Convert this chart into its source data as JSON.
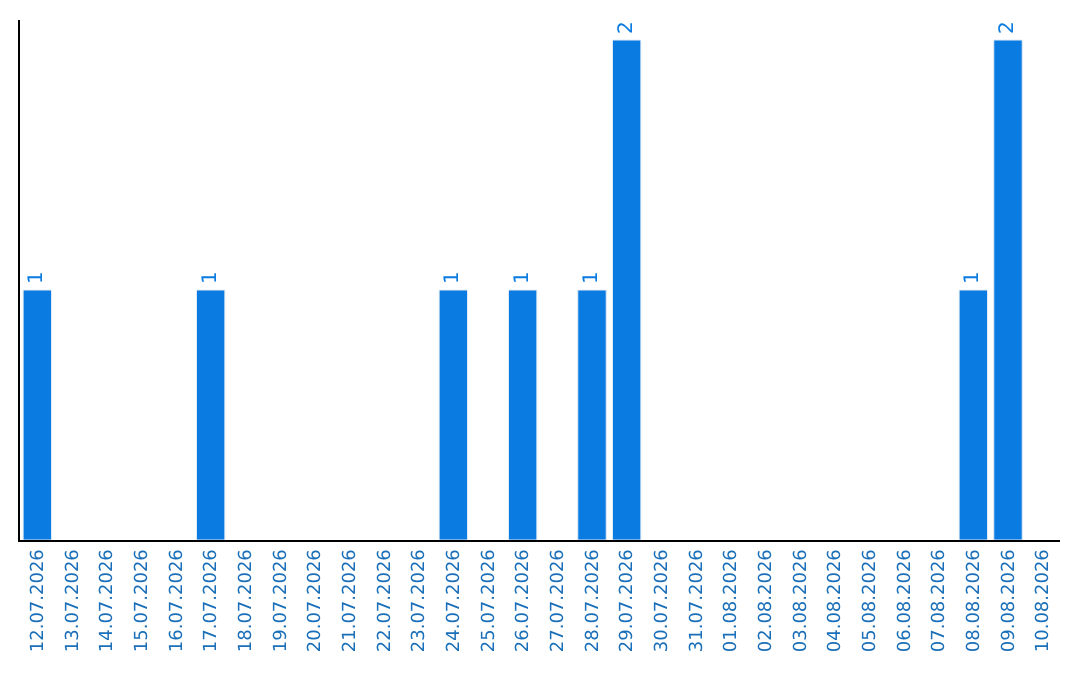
{
  "chart_data": {
    "type": "bar",
    "categories": [
      "12.07.2026",
      "13.07.2026",
      "14.07.2026",
      "15.07.2026",
      "16.07.2026",
      "17.07.2026",
      "18.07.2026",
      "19.07.2026",
      "20.07.2026",
      "21.07.2026",
      "22.07.2026",
      "23.07.2026",
      "24.07.2026",
      "25.07.2026",
      "26.07.2026",
      "27.07.2026",
      "28.07.2026",
      "29.07.2026",
      "30.07.2026",
      "31.07.2026",
      "01.08.2026",
      "02.08.2026",
      "03.08.2026",
      "04.08.2026",
      "05.08.2026",
      "06.08.2026",
      "07.08.2026",
      "08.08.2026",
      "09.08.2026",
      "10.08.2026"
    ],
    "values": [
      1,
      null,
      null,
      null,
      null,
      1,
      null,
      null,
      null,
      null,
      null,
      null,
      1,
      null,
      1,
      null,
      1,
      2,
      null,
      null,
      null,
      null,
      null,
      null,
      null,
      null,
      null,
      1,
      2,
      null
    ],
    "value_labels": [
      "1",
      null,
      null,
      null,
      null,
      "1",
      null,
      null,
      null,
      null,
      null,
      null,
      "1",
      null,
      "1",
      null,
      "1",
      "2",
      null,
      null,
      null,
      null,
      null,
      null,
      null,
      null,
      null,
      "1",
      "2",
      null
    ],
    "color": "#0a7be0",
    "legend": false
  }
}
